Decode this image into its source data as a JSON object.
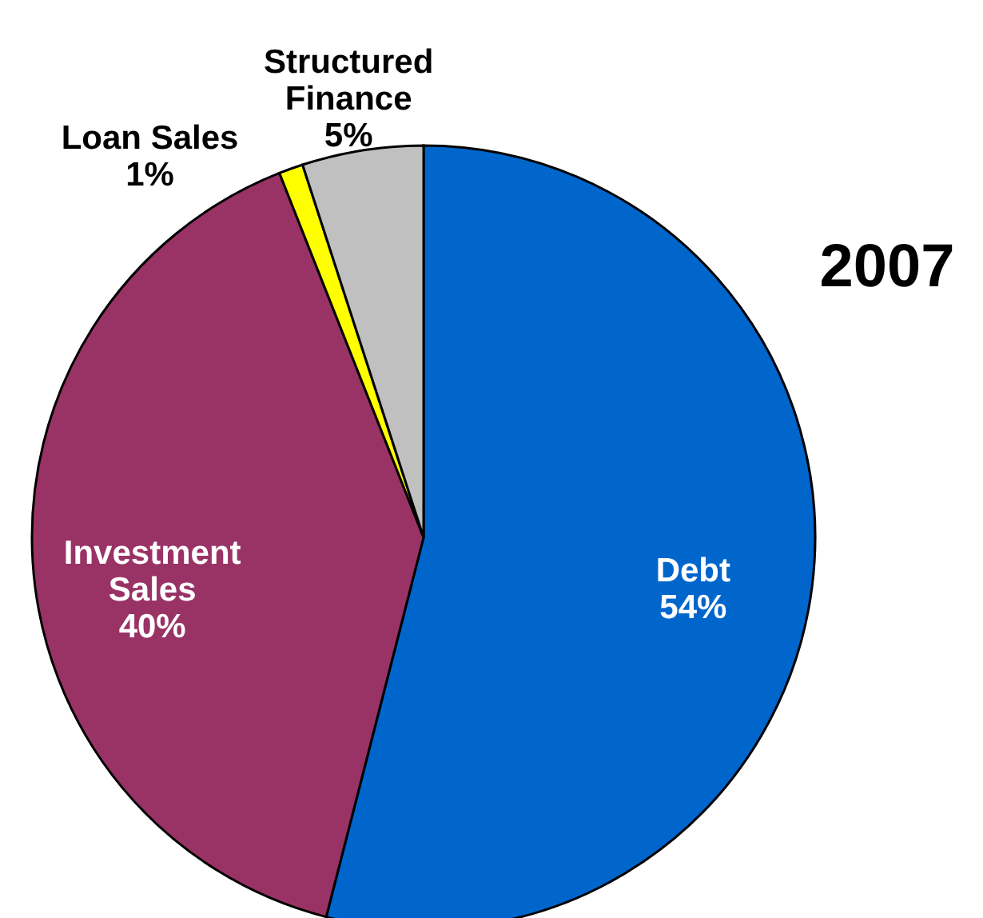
{
  "chart_data": {
    "type": "pie",
    "title": "2007",
    "categories": [
      "Debt",
      "Investment Sales",
      "Loan Sales",
      "Structured Finance"
    ],
    "values": [
      54,
      40,
      1,
      5
    ],
    "value_labels": [
      "54%",
      "40%",
      "1%",
      "5%"
    ],
    "colors": [
      "#0066cc",
      "#993366",
      "#ffff00",
      "#c0c0c0"
    ],
    "legend": false
  }
}
